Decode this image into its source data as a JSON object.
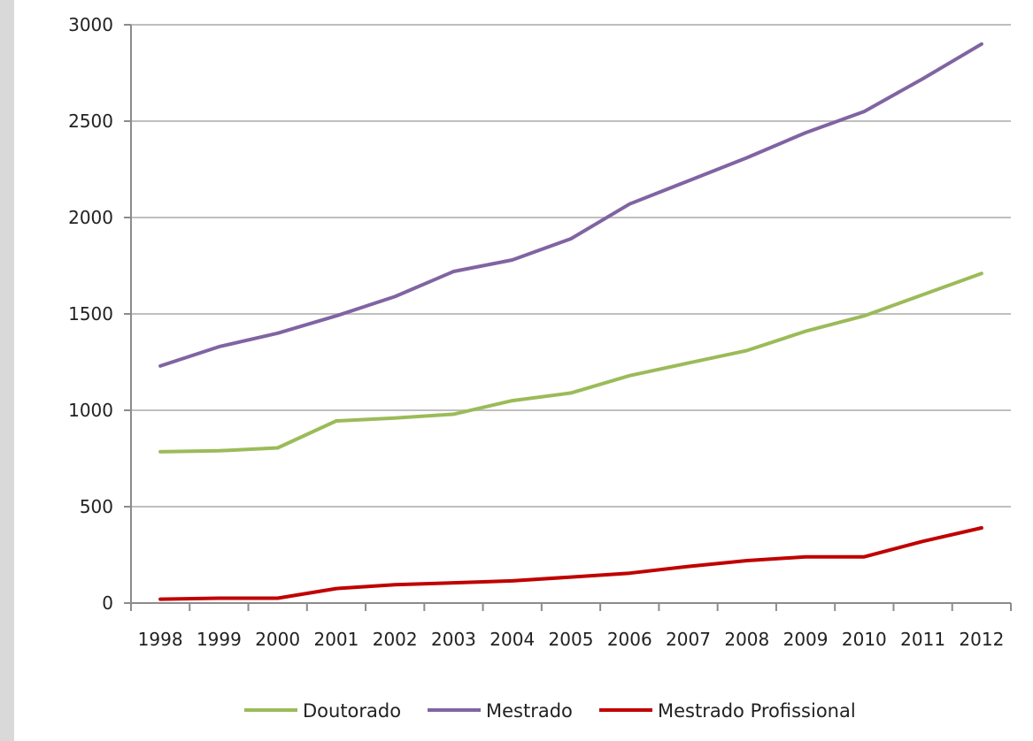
{
  "chart_data": {
    "type": "line",
    "title": "",
    "xlabel": "",
    "ylabel": "",
    "categories": [
      "1998",
      "1999",
      "2000",
      "2001",
      "2002",
      "2003",
      "2004",
      "2005",
      "2006",
      "2007",
      "2008",
      "2009",
      "2010",
      "2011",
      "2012"
    ],
    "ylim": [
      0,
      3000
    ],
    "yticks": [
      0,
      500,
      1000,
      1500,
      2000,
      2500,
      3000
    ],
    "ytick_labels": [
      "0",
      "500",
      "1000",
      "1500",
      "2000",
      "2500",
      "3000"
    ],
    "grid": "horizontal",
    "legend_position": "bottom",
    "series": [
      {
        "name": "Doutorado",
        "color": "#9bbb59",
        "values": [
          785,
          790,
          805,
          945,
          960,
          980,
          1050,
          1090,
          1180,
          1245,
          1310,
          1410,
          1490,
          1600,
          1710
        ]
      },
      {
        "name": "Mestrado",
        "color": "#8064a2",
        "values": [
          1230,
          1330,
          1400,
          1490,
          1590,
          1720,
          1780,
          1890,
          2070,
          2190,
          2310,
          2440,
          2550,
          2720,
          2900
        ]
      },
      {
        "name": "Mestrado Profissional",
        "color": "#c00000",
        "values": [
          20,
          25,
          25,
          75,
          95,
          105,
          115,
          135,
          155,
          190,
          220,
          240,
          240,
          320,
          390
        ]
      }
    ]
  }
}
